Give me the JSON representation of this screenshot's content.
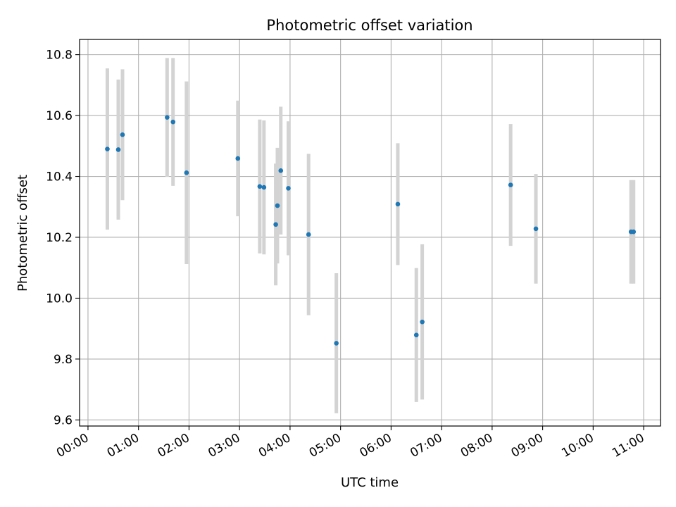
{
  "chart_data": {
    "type": "scatter",
    "title": "Photometric offset variation",
    "xlabel": "UTC time",
    "ylabel": "Photometric offset",
    "x_unit": "UTC time (HH:MM)",
    "xlim": [
      "23:50",
      "11:20"
    ],
    "ylim": [
      9.58,
      10.85
    ],
    "x_ticks": [
      "00:00",
      "01:00",
      "02:00",
      "03:00",
      "04:00",
      "05:00",
      "06:00",
      "07:00",
      "08:00",
      "09:00",
      "10:00",
      "11:00"
    ],
    "y_ticks": [
      9.6,
      9.8,
      10.0,
      10.2,
      10.4,
      10.6,
      10.8
    ],
    "grid": true,
    "colors": {
      "points": "#1f77b4",
      "error_bars": "#d3d3d3",
      "grid": "#b0b0b0"
    },
    "points": [
      {
        "x": "00:23",
        "y": 10.49,
        "err": 0.265
      },
      {
        "x": "00:36",
        "y": 10.488,
        "err": 0.23
      },
      {
        "x": "00:41",
        "y": 10.537,
        "err": 0.215
      },
      {
        "x": "01:34",
        "y": 10.594,
        "err": 0.195
      },
      {
        "x": "01:41",
        "y": 10.579,
        "err": 0.21
      },
      {
        "x": "01:57",
        "y": 10.412,
        "err": 0.3
      },
      {
        "x": "02:58",
        "y": 10.459,
        "err": 0.19
      },
      {
        "x": "03:24",
        "y": 10.367,
        "err": 0.22
      },
      {
        "x": "03:29",
        "y": 10.364,
        "err": 0.22
      },
      {
        "x": "03:43",
        "y": 10.242,
        "err": 0.2
      },
      {
        "x": "03:45",
        "y": 10.304,
        "err": 0.19
      },
      {
        "x": "03:49",
        "y": 10.419,
        "err": 0.21
      },
      {
        "x": "03:58",
        "y": 10.361,
        "err": 0.22
      },
      {
        "x": "04:22",
        "y": 10.209,
        "err": 0.265
      },
      {
        "x": "04:55",
        "y": 9.852,
        "err": 0.23
      },
      {
        "x": "06:08",
        "y": 10.309,
        "err": 0.2
      },
      {
        "x": "06:30",
        "y": 9.879,
        "err": 0.22
      },
      {
        "x": "06:37",
        "y": 9.922,
        "err": 0.255
      },
      {
        "x": "08:22",
        "y": 10.372,
        "err": 0.2
      },
      {
        "x": "08:52",
        "y": 10.228,
        "err": 0.18
      },
      {
        "x": "10:45",
        "y": 10.218,
        "err": 0.17
      },
      {
        "x": "10:48",
        "y": 10.218,
        "err": 0.17
      }
    ]
  }
}
